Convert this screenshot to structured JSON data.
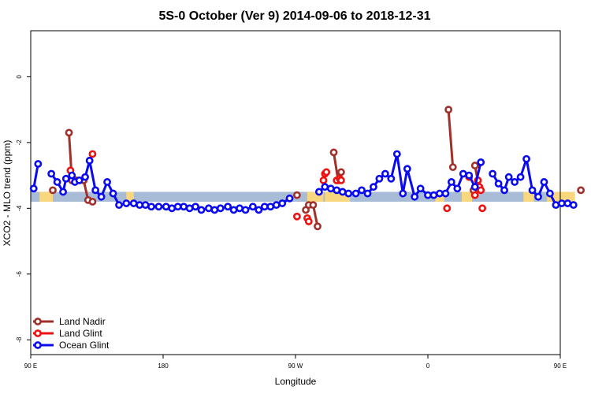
{
  "chart_data": {
    "type": "line",
    "title": "5S-0 October (Ver 9)   2014-09-06 to 2018-12-31",
    "xlabel": "Longitude",
    "ylabel": "XCO2 - MLO trend (ppm)",
    "xlim": [
      90,
      450
    ],
    "ylim": [
      -8.45,
      1.4
    ],
    "x_ticks": [
      {
        "value": 90,
        "label": "90 E"
      },
      {
        "value": 180,
        "label": "180"
      },
      {
        "value": 270,
        "label": "90 W"
      },
      {
        "value": 360,
        "label": "0"
      },
      {
        "value": 450,
        "label": "90 E"
      },
      {
        "value": 540,
        "label": "180"
      }
    ],
    "y_ticks": [
      {
        "value": 0,
        "label": "0"
      },
      {
        "value": -2,
        "label": "-2"
      },
      {
        "value": -4,
        "label": "-4"
      },
      {
        "value": -6,
        "label": "-6"
      },
      {
        "value": -8,
        "label": "-8"
      }
    ],
    "legend_position": "bottom-left",
    "band": {
      "y_min": -3.8,
      "y_max": -3.5,
      "ocean_color": "#a8bcd8",
      "land_color": "#f8d77e"
    },
    "land_segments": [
      [
        96,
        105
      ],
      [
        155,
        160
      ],
      [
        278,
        289
      ],
      [
        290,
        307
      ],
      [
        365,
        371
      ],
      [
        383,
        390
      ],
      [
        425,
        432
      ],
      [
        441,
        460
      ],
      [
        503,
        514
      ]
    ],
    "series": [
      {
        "name": "Land Nadir",
        "color": "#a0302a",
        "segments": [
          [
            [
              105,
              -3.45
            ]
          ],
          [
            [
              116,
              -1.7
            ],
            [
              118,
              -3.15
            ]
          ],
          [
            [
              121,
              -3.15
            ],
            [
              126,
              -3.15
            ],
            [
              129,
              -3.75
            ],
            [
              132,
              -3.8
            ]
          ],
          [
            [
              271,
              -3.6
            ]
          ],
          [
            [
              277,
              -4.05
            ],
            [
              279,
              -3.9
            ],
            [
              282,
              -3.9
            ],
            [
              285,
              -4.55
            ]
          ],
          [
            [
              296,
              -2.3
            ],
            [
              299,
              -3.15
            ],
            [
              301,
              -2.9
            ]
          ],
          [
            [
              374,
              -1.0
            ],
            [
              377,
              -2.75
            ]
          ],
          [
            [
              391,
              -3.45
            ]
          ],
          [
            [
              392,
              -2.7
            ],
            [
              395,
              -3.4
            ]
          ],
          [
            [
              464,
              -3.45
            ]
          ],
          [
            [
              476,
              -1.7
            ],
            [
              478,
              -3.15
            ]
          ],
          [
            [
              481,
              -3.15
            ],
            [
              486,
              -3.15
            ],
            [
              489,
              -3.75
            ],
            [
              492,
              -3.8
            ]
          ]
        ]
      },
      {
        "name": "Land Glint",
        "color": "#ee1111",
        "segments": [
          [
            [
              117,
              -2.85
            ]
          ],
          [
            [
              132,
              -2.35
            ]
          ],
          [
            [
              271,
              -4.25
            ]
          ],
          [
            [
              278,
              -4.3
            ],
            [
              279,
              -4.4
            ]
          ],
          [
            [
              289,
              -3.15
            ],
            [
              290,
              -2.95
            ],
            [
              291,
              -2.9
            ]
          ],
          [
            [
              298,
              -3.15
            ],
            [
              300,
              -3.1
            ],
            [
              301,
              -3.15
            ]
          ],
          [
            [
              373,
              -4.0
            ]
          ],
          [
            [
              388,
              -3.05
            ]
          ],
          [
            [
              392,
              -3.6
            ]
          ],
          [
            [
              394,
              -3.15
            ],
            [
              395,
              -3.35
            ],
            [
              396,
              -3.45
            ]
          ],
          [
            [
              397,
              -4.0
            ]
          ],
          [
            [
              477,
              -2.85
            ]
          ],
          [
            [
              493,
              -2.35
            ]
          ]
        ]
      },
      {
        "name": "Ocean Glint",
        "color": "#0a0aee",
        "segments": [
          [
            [
              92,
              -3.4
            ],
            [
              95,
              -2.65
            ]
          ],
          [
            [
              104,
              -2.95
            ],
            [
              108,
              -3.2
            ],
            [
              112,
              -3.5
            ],
            [
              114,
              -3.1
            ],
            [
              118,
              -3.0
            ],
            [
              120,
              -3.2
            ],
            [
              123,
              -3.15
            ],
            [
              127,
              -3.05
            ],
            [
              130,
              -2.55
            ],
            [
              134,
              -3.45
            ],
            [
              138,
              -3.65
            ],
            [
              142,
              -3.2
            ],
            [
              146,
              -3.55
            ],
            [
              150,
              -3.9
            ],
            [
              155,
              -3.85
            ],
            [
              160,
              -3.85
            ],
            [
              164,
              -3.9
            ],
            [
              168,
              -3.9
            ],
            [
              172,
              -3.95
            ],
            [
              177,
              -3.95
            ],
            [
              182,
              -3.95
            ],
            [
              186,
              -4.0
            ],
            [
              190,
              -3.95
            ],
            [
              194,
              -3.95
            ],
            [
              198,
              -4.0
            ],
            [
              202,
              -3.95
            ],
            [
              206,
              -4.05
            ],
            [
              211,
              -4.0
            ],
            [
              215,
              -4.05
            ],
            [
              219,
              -4.0
            ],
            [
              224,
              -3.95
            ],
            [
              228,
              -4.05
            ],
            [
              232,
              -4.0
            ],
            [
              236,
              -4.05
            ],
            [
              241,
              -3.95
            ],
            [
              245,
              -4.05
            ],
            [
              249,
              -3.95
            ],
            [
              253,
              -3.95
            ],
            [
              257,
              -3.9
            ],
            [
              261,
              -3.85
            ],
            [
              266,
              -3.7
            ]
          ],
          [
            [
              286,
              -3.5
            ],
            [
              290,
              -3.35
            ],
            [
              294,
              -3.4
            ],
            [
              298,
              -3.45
            ],
            [
              302,
              -3.5
            ],
            [
              306,
              -3.55
            ],
            [
              311,
              -3.55
            ],
            [
              315,
              -3.45
            ],
            [
              319,
              -3.55
            ],
            [
              323,
              -3.35
            ],
            [
              327,
              -3.1
            ],
            [
              331,
              -2.95
            ],
            [
              335,
              -3.1
            ],
            [
              339,
              -2.35
            ],
            [
              343,
              -3.55
            ],
            [
              346,
              -2.8
            ],
            [
              351,
              -3.65
            ],
            [
              355,
              -3.4
            ],
            [
              360,
              -3.6
            ],
            [
              364,
              -3.6
            ],
            [
              368,
              -3.55
            ],
            [
              372,
              -3.55
            ],
            [
              376,
              -3.2
            ],
            [
              380,
              -3.4
            ],
            [
              384,
              -2.95
            ],
            [
              388,
              -3.0
            ],
            [
              392,
              -3.35
            ],
            [
              396,
              -2.6
            ]
          ],
          [
            [
              404,
              -2.95
            ],
            [
              408,
              -3.25
            ],
            [
              412,
              -3.45
            ],
            [
              415,
              -3.05
            ],
            [
              419,
              -3.2
            ],
            [
              423,
              -3.05
            ],
            [
              427,
              -2.5
            ],
            [
              431,
              -3.45
            ],
            [
              435,
              -3.65
            ],
            [
              439,
              -3.2
            ],
            [
              443,
              -3.55
            ],
            [
              447,
              -3.9
            ],
            [
              451,
              -3.85
            ],
            [
              455,
              -3.85
            ],
            [
              459,
              -3.9
            ]
          ]
        ]
      }
    ]
  }
}
